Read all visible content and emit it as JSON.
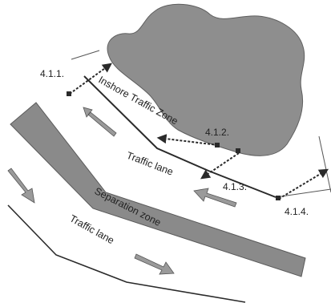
{
  "diagram": {
    "labels": {
      "inshore_zone": "Inshore Traffic Zone",
      "traffic_lane_upper": "Traffic lane",
      "separation_zone": "Separation zone",
      "traffic_lane_lower": "Traffic lane"
    },
    "references": {
      "r1": "4.1.1.",
      "r2": "4.1.2.",
      "r3": "4.1.3.",
      "r4": "4.1.4."
    },
    "colors": {
      "land": "#8e8e8e",
      "separation_zone": "#8a8a8a",
      "arrow_fill": "#9a9a9a",
      "line": "#2a2a2a",
      "text": "#222222"
    }
  }
}
